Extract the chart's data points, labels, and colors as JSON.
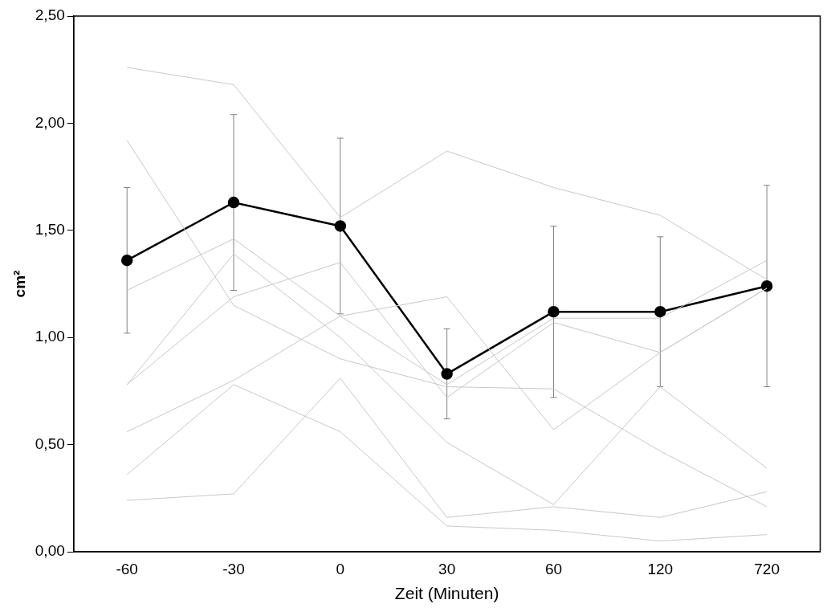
{
  "chart_data": {
    "type": "line",
    "xlabel": "Zeit (Minuten)",
    "ylabel": "cm²",
    "categories": [
      "-60",
      "-30",
      "0",
      "30",
      "60",
      "120",
      "720"
    ],
    "ylim": [
      0,
      2.5
    ],
    "yticks": [
      {
        "value": 0,
        "label": "0,00"
      },
      {
        "value": 0.5,
        "label": "0,50"
      },
      {
        "value": 1,
        "label": "1,00"
      },
      {
        "value": 1.5,
        "label": "1,50"
      },
      {
        "value": 2,
        "label": "2,00"
      },
      {
        "value": 2.5,
        "label": "2,50"
      }
    ],
    "grid": false,
    "legend": false,
    "line_style": "solid",
    "series": [
      {
        "color": "#c8c8c8",
        "marker": "none",
        "values": [
          2.26,
          2.18,
          1.56,
          1.87,
          1.7,
          1.57,
          1.27
        ]
      },
      {
        "color": "#c8c8c8",
        "marker": "none",
        "values": [
          1.92,
          1.15,
          0.9,
          0.77,
          0.76,
          0.47,
          0.21
        ]
      },
      {
        "color": "#c8c8c8",
        "marker": "none",
        "values": [
          0.24,
          0.27,
          0.81,
          0.16,
          0.21,
          0.16,
          0.28
        ]
      },
      {
        "color": "#c8c8c8",
        "marker": "none",
        "values": [
          0.36,
          0.78,
          0.56,
          0.12,
          0.1,
          0.05,
          0.08
        ]
      },
      {
        "color": "#c8c8c8",
        "marker": "none",
        "values": [
          0.56,
          0.8,
          1.1,
          1.19,
          0.57,
          0.93,
          1.23
        ]
      },
      {
        "color": "#c8c8c8",
        "marker": "none",
        "values": [
          1.22,
          1.46,
          1.1,
          0.78,
          1.09,
          1.09,
          1.36
        ]
      },
      {
        "color": "#c8c8c8",
        "marker": "none",
        "values": [
          0.78,
          1.39,
          1.0,
          0.51,
          0.22,
          0.77,
          0.39
        ]
      },
      {
        "color": "#c8c8c8",
        "marker": "none",
        "values": [
          0.78,
          1.19,
          1.35,
          0.72,
          1.07,
          0.93,
          1.23
        ]
      },
      {
        "color": "#000000",
        "marker": "circle",
        "values": [
          1.36,
          1.63,
          1.52,
          0.83,
          1.12,
          1.12,
          1.24
        ],
        "errors": [
          [
            1.02,
            1.7
          ],
          [
            1.22,
            2.04
          ],
          [
            1.11,
            1.93
          ],
          [
            0.62,
            1.04
          ],
          [
            0.72,
            1.52
          ],
          [
            0.77,
            1.47
          ],
          [
            0.77,
            1.71
          ]
        ]
      }
    ]
  }
}
